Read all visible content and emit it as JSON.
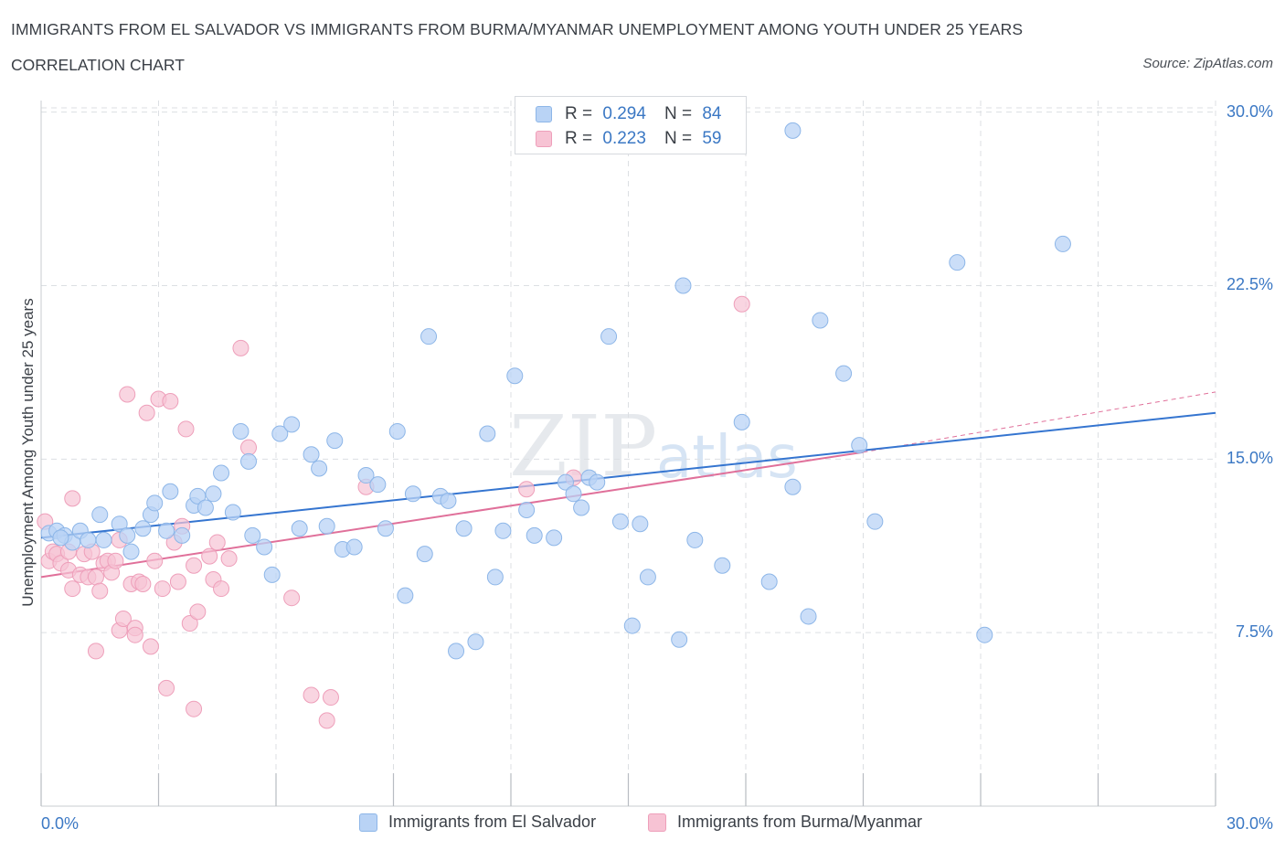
{
  "title": "IMMIGRANTS FROM EL SALVADOR VS IMMIGRANTS FROM BURMA/MYANMAR UNEMPLOYMENT AMONG YOUTH UNDER 25 YEARS",
  "subtitle": "CORRELATION CHART",
  "source": "Source: ZipAtlas.com",
  "watermark": "ZIPatlas",
  "colors": {
    "blue_fill": "#b9d3f5",
    "blue_stroke": "#8db6e8",
    "blue_line": "#3575d0",
    "pink_fill": "#f7c3d4",
    "pink_stroke": "#ee9fba",
    "pink_line": "#e0709a",
    "axis_text": "#3b78c4",
    "grid": "#dcdfe3"
  },
  "legend": {
    "items": [
      {
        "r_label": "R =",
        "r_value": "0.294",
        "n_label": "N =",
        "n_value": "84"
      },
      {
        "r_label": "R =",
        "r_value": "0.223",
        "n_label": "N =",
        "n_value": "59"
      }
    ]
  },
  "bottom_legend": {
    "series1": "Immigrants from El Salvador",
    "series2": "Immigrants from Burma/Myanmar"
  },
  "chart_data": {
    "type": "scatter",
    "title": "IMMIGRANTS FROM EL SALVADOR VS IMMIGRANTS FROM BURMA/MYANMAR UNEMPLOYMENT AMONG YOUTH UNDER 25 YEARS",
    "subtitle": "CORRELATION CHART",
    "xlabel": "",
    "ylabel": "Unemployment Among Youth under 25 years",
    "xlim": [
      0,
      30
    ],
    "ylim": [
      0,
      30.5
    ],
    "x_ticks": [
      "0.0%",
      "30.0%"
    ],
    "y_ticks": [
      {
        "value": 7.5,
        "label": "7.5%"
      },
      {
        "value": 15.0,
        "label": "15.0%"
      },
      {
        "value": 22.5,
        "label": "22.5%"
      },
      {
        "value": 30.0,
        "label": "30.0%"
      }
    ],
    "grid": true,
    "legend_position": "top-center",
    "series": [
      {
        "name": "Immigrants from El Salvador",
        "color": "#b9d3f5",
        "trend": {
          "x": [
            0,
            30
          ],
          "y": [
            11.6,
            17.0
          ]
        },
        "points": [
          [
            0.2,
            11.8
          ],
          [
            0.4,
            11.9
          ],
          [
            0.6,
            11.7
          ],
          [
            0.8,
            11.4
          ],
          [
            1.0,
            11.9
          ],
          [
            1.2,
            11.5
          ],
          [
            1.5,
            12.6
          ],
          [
            1.6,
            11.5
          ],
          [
            2.0,
            12.2
          ],
          [
            2.2,
            11.7
          ],
          [
            2.3,
            11.0
          ],
          [
            2.6,
            12.0
          ],
          [
            2.8,
            12.6
          ],
          [
            2.9,
            13.1
          ],
          [
            3.2,
            11.9
          ],
          [
            3.3,
            13.6
          ],
          [
            3.6,
            11.7
          ],
          [
            3.9,
            13.0
          ],
          [
            4.0,
            13.4
          ],
          [
            4.2,
            12.9
          ],
          [
            4.4,
            13.5
          ],
          [
            4.6,
            14.4
          ],
          [
            4.9,
            12.7
          ],
          [
            5.1,
            16.2
          ],
          [
            5.3,
            14.9
          ],
          [
            5.4,
            11.7
          ],
          [
            5.7,
            11.2
          ],
          [
            5.9,
            10.0
          ],
          [
            6.1,
            16.1
          ],
          [
            6.4,
            16.5
          ],
          [
            6.6,
            12.0
          ],
          [
            6.9,
            15.2
          ],
          [
            7.1,
            14.6
          ],
          [
            7.3,
            12.1
          ],
          [
            7.5,
            15.8
          ],
          [
            7.7,
            11.1
          ],
          [
            8.0,
            11.2
          ],
          [
            8.3,
            14.3
          ],
          [
            8.6,
            13.9
          ],
          [
            8.8,
            12.0
          ],
          [
            9.1,
            16.2
          ],
          [
            9.3,
            9.1
          ],
          [
            9.5,
            13.5
          ],
          [
            9.8,
            10.9
          ],
          [
            9.9,
            20.3
          ],
          [
            10.2,
            13.4
          ],
          [
            10.4,
            13.2
          ],
          [
            10.6,
            6.7
          ],
          [
            10.8,
            12.0
          ],
          [
            11.1,
            7.1
          ],
          [
            11.4,
            16.1
          ],
          [
            11.6,
            9.9
          ],
          [
            11.8,
            11.9
          ],
          [
            12.1,
            18.6
          ],
          [
            12.4,
            12.8
          ],
          [
            12.6,
            11.7
          ],
          [
            13.1,
            11.6
          ],
          [
            13.4,
            14.0
          ],
          [
            13.6,
            13.5
          ],
          [
            13.8,
            12.9
          ],
          [
            14.0,
            14.2
          ],
          [
            14.2,
            14.0
          ],
          [
            14.5,
            20.3
          ],
          [
            14.8,
            12.3
          ],
          [
            15.1,
            7.8
          ],
          [
            15.3,
            12.2
          ],
          [
            15.5,
            9.9
          ],
          [
            16.3,
            7.2
          ],
          [
            16.4,
            22.5
          ],
          [
            16.7,
            11.5
          ],
          [
            17.4,
            10.4
          ],
          [
            17.9,
            16.6
          ],
          [
            18.6,
            9.7
          ],
          [
            19.2,
            13.8
          ],
          [
            19.2,
            29.2
          ],
          [
            19.6,
            8.2
          ],
          [
            19.9,
            21.0
          ],
          [
            20.5,
            18.7
          ],
          [
            20.9,
            15.6
          ],
          [
            21.3,
            12.3
          ],
          [
            23.4,
            23.5
          ],
          [
            24.1,
            7.4
          ],
          [
            26.1,
            24.3
          ],
          [
            0.5,
            11.6
          ]
        ]
      },
      {
        "name": "Immigrants from Burma/Myanmar",
        "color": "#f7c3d4",
        "trend": {
          "x": [
            0,
            21
          ],
          "y": [
            9.9,
            15.3
          ]
        },
        "trend_extension": {
          "x": [
            21,
            30
          ],
          "y": [
            15.3,
            17.9
          ]
        },
        "points": [
          [
            0.1,
            12.3
          ],
          [
            0.2,
            10.6
          ],
          [
            0.3,
            11.0
          ],
          [
            0.4,
            10.9
          ],
          [
            0.5,
            10.5
          ],
          [
            0.7,
            11.0
          ],
          [
            0.7,
            10.2
          ],
          [
            0.8,
            9.4
          ],
          [
            0.8,
            13.3
          ],
          [
            1.0,
            10.0
          ],
          [
            1.1,
            10.9
          ],
          [
            1.2,
            9.9
          ],
          [
            1.3,
            11.0
          ],
          [
            1.4,
            9.9
          ],
          [
            1.4,
            6.7
          ],
          [
            1.5,
            9.3
          ],
          [
            1.6,
            10.5
          ],
          [
            1.7,
            10.6
          ],
          [
            1.8,
            10.1
          ],
          [
            1.9,
            10.6
          ],
          [
            2.0,
            11.5
          ],
          [
            2.0,
            7.6
          ],
          [
            2.1,
            8.1
          ],
          [
            2.2,
            17.8
          ],
          [
            2.3,
            9.6
          ],
          [
            2.4,
            7.7
          ],
          [
            2.4,
            7.4
          ],
          [
            2.5,
            9.7
          ],
          [
            2.6,
            9.6
          ],
          [
            2.7,
            17.0
          ],
          [
            2.8,
            6.9
          ],
          [
            2.9,
            10.6
          ],
          [
            3.0,
            17.6
          ],
          [
            3.1,
            9.4
          ],
          [
            3.2,
            5.1
          ],
          [
            3.3,
            17.5
          ],
          [
            3.4,
            11.4
          ],
          [
            3.5,
            9.7
          ],
          [
            3.6,
            12.1
          ],
          [
            3.7,
            16.3
          ],
          [
            3.8,
            7.9
          ],
          [
            3.9,
            10.4
          ],
          [
            3.9,
            4.2
          ],
          [
            4.0,
            8.4
          ],
          [
            4.3,
            10.8
          ],
          [
            4.4,
            9.8
          ],
          [
            4.5,
            11.4
          ],
          [
            4.6,
            9.4
          ],
          [
            4.8,
            10.7
          ],
          [
            5.1,
            19.8
          ],
          [
            5.3,
            15.5
          ],
          [
            6.4,
            9.0
          ],
          [
            6.9,
            4.8
          ],
          [
            7.3,
            3.7
          ],
          [
            7.4,
            4.7
          ],
          [
            8.3,
            13.8
          ],
          [
            12.4,
            13.7
          ],
          [
            13.6,
            14.2
          ],
          [
            17.9,
            21.7
          ]
        ]
      }
    ]
  }
}
